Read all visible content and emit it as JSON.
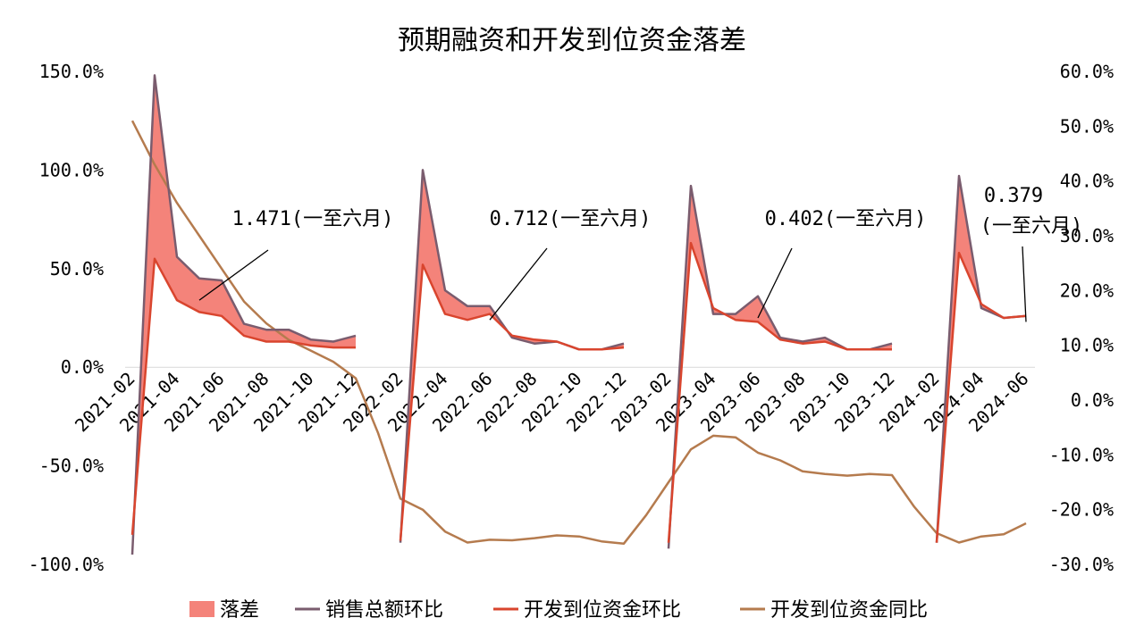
{
  "title": "预期融资和开发到位资金落差",
  "colors": {
    "gap_fill": "#F4837A",
    "sales": "#7A5C6E",
    "funds_mom": "#D9452E",
    "funds_yoy": "#B57B4E"
  },
  "chart_data": {
    "type": "line",
    "title": "预期融资和开发到位资金落差",
    "x": [
      "2021-02",
      "2021-03",
      "2021-04",
      "2021-05",
      "2021-06",
      "2021-07",
      "2021-08",
      "2021-09",
      "2021-10",
      "2021-11",
      "2021-12",
      "2022-01",
      "2022-02",
      "2022-03",
      "2022-04",
      "2022-05",
      "2022-06",
      "2022-07",
      "2022-08",
      "2022-09",
      "2022-10",
      "2022-11",
      "2022-12",
      "2023-01",
      "2023-02",
      "2023-03",
      "2023-04",
      "2023-05",
      "2023-06",
      "2023-07",
      "2023-08",
      "2023-09",
      "2023-10",
      "2023-11",
      "2023-12",
      "2024-01",
      "2024-02",
      "2024-03",
      "2024-04",
      "2024-05",
      "2024-06"
    ],
    "x_tick_labels": [
      "2021-02",
      "2021-04",
      "2021-06",
      "2021-08",
      "2021-10",
      "2021-12",
      "2022-02",
      "2022-04",
      "2022-06",
      "2022-08",
      "2022-10",
      "2022-12",
      "2023-02",
      "2023-04",
      "2023-06",
      "2023-08",
      "2023-10",
      "2023-12",
      "2024-02",
      "2024-04",
      "2024-06"
    ],
    "y_left": {
      "ylim": [
        -100,
        150
      ],
      "ticks": [
        "-100.0%",
        "-50.0%",
        "0.0%",
        "50.0%",
        "100.0%",
        "150.0%"
      ],
      "tick_values": [
        -100,
        -50,
        0,
        50,
        100,
        150
      ]
    },
    "y_right": {
      "ylim": [
        -30,
        60
      ],
      "ticks": [
        "-30.0%",
        "-20.0%",
        "-10.0%",
        "0.0%",
        "10.0%",
        "20.0%",
        "30.0%",
        "40.0%",
        "50.0%",
        "60.0%"
      ],
      "tick_values": [
        -30,
        -20,
        -10,
        0,
        10,
        20,
        30,
        40,
        50,
        60
      ]
    },
    "series": [
      {
        "name": "销售总额环比",
        "axis": "left",
        "values": [
          -95,
          148,
          56,
          45,
          44,
          22,
          19,
          19,
          14,
          13,
          16,
          null,
          -89,
          100,
          39,
          31,
          31,
          15,
          12,
          13,
          9,
          9,
          12,
          null,
          -92,
          92,
          27,
          27,
          36,
          15,
          13,
          15,
          9,
          9,
          12,
          null,
          -89,
          97,
          30,
          25,
          26
        ]
      },
      {
        "name": "开发到位资金环比",
        "axis": "left",
        "values": [
          -85,
          55,
          34,
          28,
          26,
          16,
          13,
          13,
          11,
          10,
          10,
          null,
          -88,
          52,
          27,
          24,
          27,
          16,
          14,
          13,
          9,
          9,
          10,
          null,
          -89,
          63,
          30,
          24,
          23,
          14,
          12,
          13,
          9,
          9,
          9,
          null,
          -89,
          58,
          32,
          25,
          26
        ]
      },
      {
        "name": "开发到位资金同比",
        "axis": "right",
        "values": [
          51,
          43,
          36,
          30,
          24,
          18,
          14,
          11,
          9,
          7,
          4,
          -6,
          -18,
          -20,
          -24,
          -26,
          -25.5,
          -25.6,
          -25.2,
          -24.7,
          -24.9,
          -25.8,
          -26.2,
          -21,
          -15,
          -9,
          -6.5,
          -6.8,
          -9.6,
          -11,
          -13,
          -13.5,
          -13.8,
          -13.5,
          -13.7,
          -19.5,
          -24.3,
          -26,
          -24.9,
          -24.5,
          -22.5
        ]
      }
    ],
    "gap": {
      "name": "落差",
      "between": [
        "销售总额环比",
        "开发到位资金环比"
      ]
    },
    "annotations": [
      {
        "line1": "1.471(一至六月)",
        "line2": "",
        "anchor_x": "2021-05",
        "anchor_y": 34
      },
      {
        "line1": "0.712(一至六月)",
        "line2": "",
        "anchor_x": "2022-06",
        "anchor_y": 24
      },
      {
        "line1": "0.402(一至六月)",
        "line2": "",
        "anchor_x": "2023-06",
        "anchor_y": 25
      },
      {
        "line1": "0.379",
        "line2": "(一至六月)",
        "anchor_x": "2024-06",
        "anchor_y": 23
      }
    ],
    "legend": {
      "position": "bottom",
      "items": [
        {
          "label": "落差",
          "kind": "area",
          "color_key": "gap_fill"
        },
        {
          "label": "销售总额环比",
          "kind": "line",
          "color_key": "sales"
        },
        {
          "label": "开发到位资金环比",
          "kind": "line",
          "color_key": "funds_mom"
        },
        {
          "label": "开发到位资金同比",
          "kind": "line",
          "color_key": "funds_yoy"
        }
      ]
    },
    "grid": false
  }
}
